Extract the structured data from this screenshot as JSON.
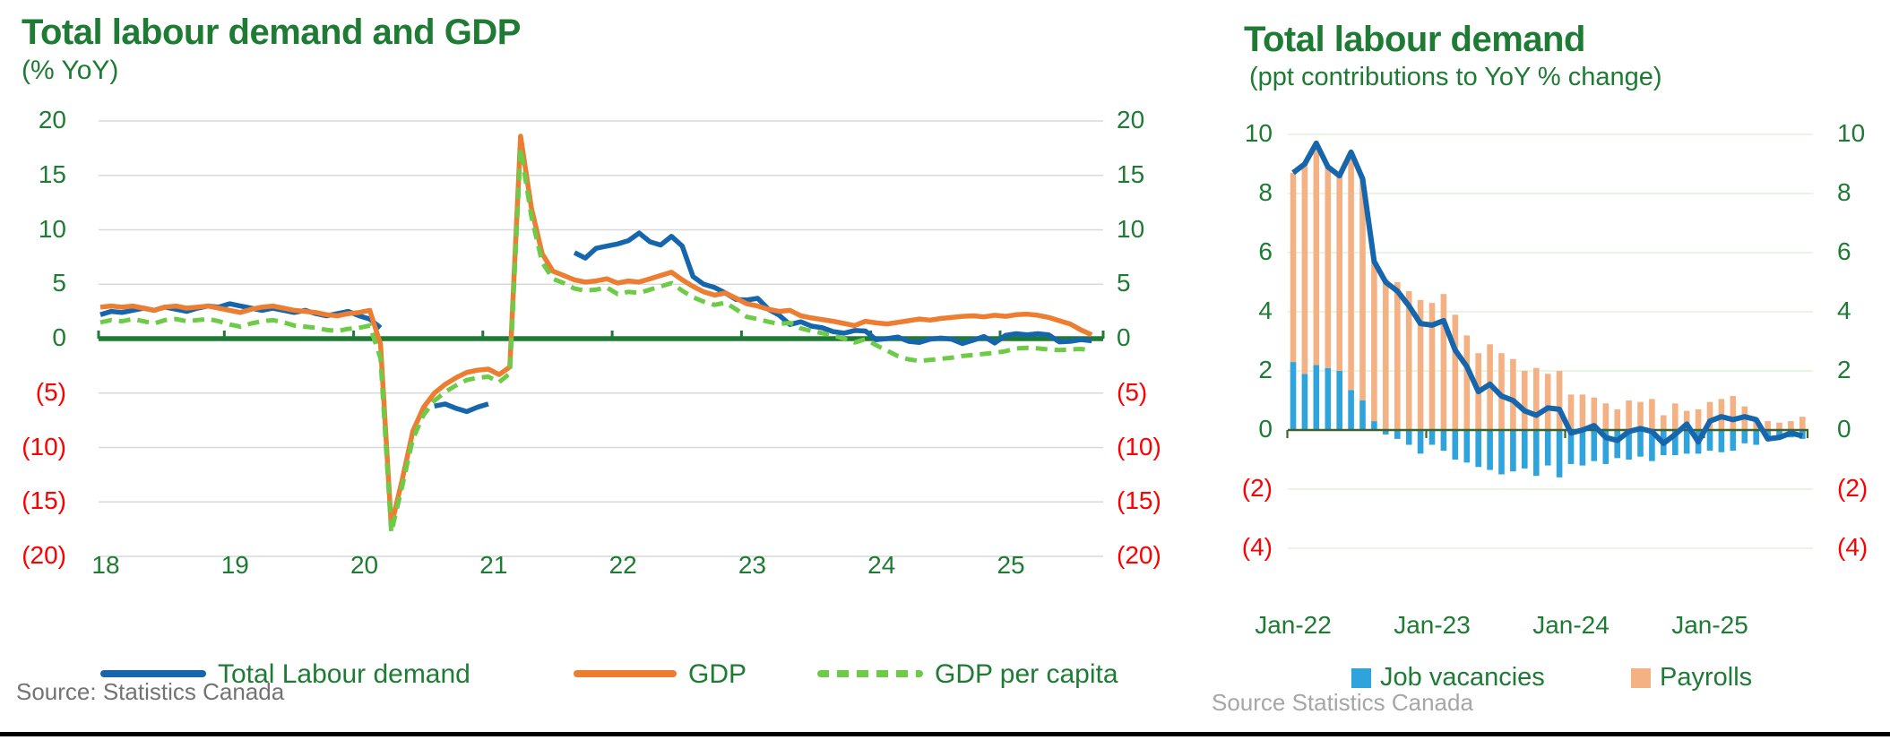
{
  "colors": {
    "green_text": "#1e7b34",
    "red_text": "#ff0000",
    "line_blue": "#1566ac",
    "bar_blue": "#2fa3dc",
    "orange": "#ed7d31",
    "light_green": "#6ecb47",
    "grid_gray": "#d9d9d9",
    "grid_light_green": "#e4f0dc",
    "axis_green": "#1e7b34",
    "axis_olive": "#3f6228",
    "source_gray": "#737373",
    "source_gray_light": "#a6a6a6",
    "border_black": "#000000"
  },
  "chart_data": [
    {
      "id": "left",
      "type": "line",
      "title": "Total labour demand and GDP",
      "subtitle": "(% YoY)",
      "source": "Source: Statistics Canada",
      "x_start": "2018-01",
      "freq": "monthly",
      "n_months": 93,
      "ylim": [
        -20,
        20
      ],
      "grid": true,
      "legend_position": "bottom",
      "x_tick_labels": [
        "18",
        "19",
        "20",
        "21",
        "22",
        "23",
        "24",
        "25"
      ],
      "y_ticks": [
        {
          "v": 20,
          "label": "20"
        },
        {
          "v": 15,
          "label": "15"
        },
        {
          "v": 10,
          "label": "10"
        },
        {
          "v": 5,
          "label": "5"
        },
        {
          "v": 0,
          "label": "0"
        },
        {
          "v": -5,
          "label": "(5)"
        },
        {
          "v": -10,
          "label": "(10)"
        },
        {
          "v": -15,
          "label": "(15)"
        },
        {
          "v": -20,
          "label": "(20)"
        }
      ],
      "legend": [
        {
          "label": "Total Labour demand",
          "style": "solid",
          "color_key": "line_blue"
        },
        {
          "label": "GDP",
          "style": "solid",
          "color_key": "orange"
        },
        {
          "label": "GDP per capita",
          "style": "dashed",
          "color_key": "light_green"
        }
      ],
      "series": [
        {
          "name": "Total Labour demand",
          "color_key": "line_blue",
          "dash": false,
          "values": [
            2.2,
            2.5,
            2.4,
            2.6,
            2.8,
            2.6,
            2.9,
            2.7,
            2.5,
            2.8,
            3.0,
            2.9,
            3.2,
            3.0,
            2.8,
            2.6,
            2.8,
            2.6,
            2.4,
            2.6,
            2.3,
            2.1,
            2.3,
            2.5,
            2.1,
            1.8,
            1.0,
            null,
            null,
            null,
            null,
            -6.2,
            -6.0,
            -6.4,
            -6.7,
            -6.3,
            -6.0,
            null,
            null,
            null,
            null,
            null,
            null,
            null,
            7.9,
            7.4,
            8.3,
            8.5,
            8.7,
            9.0,
            9.7,
            8.9,
            8.6,
            9.4,
            8.5,
            5.7,
            5.0,
            4.7,
            4.2,
            3.6,
            3.55,
            3.7,
            2.7,
            2.15,
            1.3,
            1.55,
            1.15,
            1.0,
            0.65,
            0.5,
            0.75,
            0.7,
            -0.1,
            0.0,
            0.15,
            -0.25,
            -0.35,
            -0.05,
            0.05,
            -0.05,
            -0.45,
            -0.15,
            0.2,
            -0.4,
            0.3,
            0.45,
            0.35,
            0.45,
            0.35,
            -0.3,
            -0.25,
            -0.1,
            -0.2
          ]
        },
        {
          "name": "GDP",
          "color_key": "orange",
          "dash": false,
          "values": [
            2.9,
            3.0,
            2.9,
            3.0,
            2.8,
            2.6,
            2.9,
            3.0,
            2.8,
            2.9,
            3.0,
            2.8,
            2.6,
            2.4,
            2.7,
            2.9,
            3.0,
            2.8,
            2.6,
            2.5,
            2.4,
            2.2,
            2.1,
            2.3,
            2.4,
            2.6,
            -0.5,
            -17.2,
            -13.0,
            -8.5,
            -6.3,
            -5.0,
            -4.2,
            -3.6,
            -3.1,
            -2.9,
            -2.8,
            -3.3,
            -2.6,
            18.6,
            12.0,
            7.8,
            6.2,
            5.8,
            5.4,
            5.2,
            5.3,
            5.5,
            5.1,
            5.3,
            5.2,
            5.5,
            5.8,
            6.1,
            5.4,
            4.8,
            4.3,
            4.0,
            4.2,
            3.7,
            3.2,
            3.0,
            2.7,
            2.5,
            2.6,
            2.1,
            1.9,
            1.75,
            1.6,
            1.4,
            1.2,
            1.6,
            1.45,
            1.35,
            1.5,
            1.65,
            1.8,
            1.7,
            1.85,
            1.95,
            2.05,
            2.1,
            2.0,
            2.15,
            2.05,
            2.2,
            2.25,
            2.15,
            1.95,
            1.65,
            1.35,
            0.8,
            0.35
          ]
        },
        {
          "name": "GDP per capita",
          "color_key": "light_green",
          "dash": true,
          "values": [
            1.5,
            1.7,
            1.6,
            1.8,
            1.6,
            1.4,
            1.7,
            1.8,
            1.6,
            1.7,
            1.8,
            1.6,
            1.3,
            1.1,
            1.4,
            1.6,
            1.7,
            1.5,
            1.2,
            1.1,
            1.0,
            0.8,
            0.7,
            0.9,
            1.0,
            1.2,
            -1.8,
            -17.8,
            -13.6,
            -9.2,
            -7.0,
            -5.7,
            -4.9,
            -4.3,
            -3.8,
            -3.6,
            -3.5,
            -4.0,
            -3.2,
            17.5,
            11.2,
            7.0,
            5.5,
            5.1,
            4.6,
            4.4,
            4.5,
            4.7,
            4.1,
            4.3,
            4.2,
            4.5,
            4.8,
            5.1,
            4.4,
            3.8,
            3.4,
            3.1,
            3.3,
            2.7,
            2.0,
            1.8,
            1.55,
            1.35,
            1.45,
            0.95,
            0.7,
            0.5,
            0.3,
            0.0,
            -0.35,
            -0.05,
            -0.6,
            -1.1,
            -1.6,
            -1.9,
            -2.05,
            -1.95,
            -1.85,
            -1.75,
            -1.6,
            -1.5,
            -1.4,
            -1.3,
            -1.15,
            -0.9,
            -0.85,
            -0.9,
            -1.0,
            -1.05,
            -1.0,
            -0.95,
            -1.1
          ]
        }
      ]
    },
    {
      "id": "right",
      "type": "bar",
      "bar_mode": "stacked",
      "title": "Total labour demand",
      "subtitle": "(ppt contributions to YoY % change)",
      "source": "Source Statistics Canada",
      "x_start": "2022-01",
      "freq": "monthly",
      "n_months": 45,
      "ylim": [
        -4,
        10
      ],
      "grid": true,
      "legend_position": "bottom",
      "x_tick_labels": [
        "Jan-22",
        "Jan-23",
        "Jan-24",
        "Jan-25"
      ],
      "y_ticks": [
        {
          "v": 10,
          "label": "10"
        },
        {
          "v": 8,
          "label": "8"
        },
        {
          "v": 6,
          "label": "6"
        },
        {
          "v": 4,
          "label": "4"
        },
        {
          "v": 2,
          "label": "2"
        },
        {
          "v": 0,
          "label": "0"
        },
        {
          "v": -2,
          "label": "(2)"
        },
        {
          "v": -4,
          "label": "(4)"
        }
      ],
      "legend": [
        {
          "label": "Job vacancies",
          "style": "square",
          "color_key": "bar_blue"
        },
        {
          "label": "Payrolls",
          "style": "square",
          "color_key": "orange_light"
        }
      ],
      "bars": [
        {
          "name": "Job vacancies",
          "color_key": "bar_blue",
          "values": [
            2.3,
            1.9,
            2.2,
            2.1,
            2.0,
            1.35,
            1.0,
            0.3,
            -0.15,
            -0.3,
            -0.5,
            -0.8,
            -0.5,
            -0.7,
            -1.0,
            -1.1,
            -1.25,
            -1.35,
            -1.5,
            -1.4,
            -1.3,
            -1.55,
            -1.2,
            -1.6,
            -1.15,
            -1.2,
            -1.05,
            -1.15,
            -0.95,
            -1.0,
            -0.9,
            -1.05,
            -0.85,
            -0.85,
            -0.8,
            -0.8,
            -0.7,
            -0.75,
            -0.7,
            -0.45,
            -0.5,
            -0.3,
            -0.25,
            -0.25,
            -0.3
          ]
        },
        {
          "name": "Payrolls",
          "color_key": "orange_light",
          "values": [
            6.4,
            7.1,
            7.5,
            6.8,
            6.6,
            8.05,
            7.5,
            5.4,
            5.1,
            5.0,
            4.7,
            4.4,
            4.3,
            4.6,
            3.9,
            3.2,
            2.6,
            2.9,
            2.6,
            2.4,
            2.0,
            2.1,
            1.9,
            2.0,
            1.2,
            1.2,
            1.1,
            0.9,
            0.7,
            1.0,
            0.95,
            1.05,
            0.5,
            0.9,
            0.65,
            0.7,
            0.95,
            1.05,
            1.15,
            0.8,
            0.35,
            0.3,
            0.25,
            0.3,
            0.45
          ]
        }
      ],
      "line": {
        "name": "Total labour demand",
        "color_key": "line_blue",
        "values": [
          8.7,
          9.0,
          9.7,
          8.9,
          8.6,
          9.4,
          8.5,
          5.7,
          5.0,
          4.7,
          4.2,
          3.6,
          3.55,
          3.7,
          2.7,
          2.15,
          1.3,
          1.55,
          1.15,
          1.0,
          0.65,
          0.5,
          0.75,
          0.7,
          -0.1,
          0.0,
          0.15,
          -0.25,
          -0.35,
          -0.05,
          0.05,
          -0.05,
          -0.45,
          -0.15,
          0.2,
          -0.4,
          0.3,
          0.45,
          0.35,
          0.45,
          0.35,
          -0.3,
          -0.25,
          -0.1,
          -0.2
        ]
      },
      "bar_color_hex": "#f4b183"
    }
  ]
}
